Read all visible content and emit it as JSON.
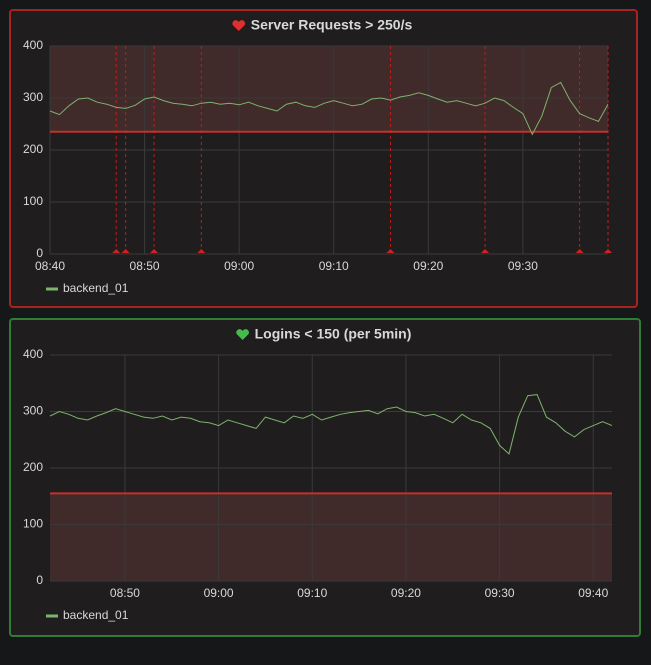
{
  "chart_data": [
    {
      "type": "line",
      "title": "Server Requests > 250/s",
      "state": "alerting",
      "x": [
        "08:40",
        "08:41",
        "08:42",
        "08:43",
        "08:44",
        "08:45",
        "08:46",
        "08:47",
        "08:48",
        "08:49",
        "08:50",
        "08:51",
        "08:52",
        "08:53",
        "08:54",
        "08:55",
        "08:56",
        "08:57",
        "08:58",
        "08:59",
        "09:00",
        "09:01",
        "09:02",
        "09:03",
        "09:04",
        "09:05",
        "09:06",
        "09:07",
        "09:08",
        "09:09",
        "09:10",
        "09:11",
        "09:12",
        "09:13",
        "09:14",
        "09:15",
        "09:16",
        "09:17",
        "09:18",
        "09:19",
        "09:20",
        "09:21",
        "09:22",
        "09:23",
        "09:24",
        "09:25",
        "09:26",
        "09:27",
        "09:28",
        "09:29",
        "09:30",
        "09:31",
        "09:32",
        "09:33",
        "09:34",
        "09:35",
        "09:36",
        "09:37",
        "09:38",
        "09:39"
      ],
      "series": [
        {
          "name": "backend_01",
          "color": "#7eb26d",
          "values": [
            275,
            268,
            285,
            298,
            300,
            292,
            288,
            282,
            280,
            286,
            298,
            302,
            295,
            290,
            288,
            285,
            290,
            292,
            288,
            290,
            287,
            292,
            285,
            280,
            275,
            288,
            292,
            285,
            282,
            290,
            295,
            290,
            285,
            288,
            298,
            300,
            296,
            302,
            305,
            310,
            305,
            298,
            292,
            295,
            290,
            285,
            290,
            300,
            295,
            282,
            270,
            230,
            265,
            320,
            330,
            295,
            270,
            262,
            255,
            288
          ]
        }
      ],
      "xlim": [
        "08:40",
        "09:39"
      ],
      "xticks": [
        "08:40",
        "08:50",
        "09:00",
        "09:10",
        "09:20",
        "09:30"
      ],
      "ylim": [
        0,
        400
      ],
      "yticks": [
        0,
        100,
        200,
        300,
        400
      ],
      "grid": true,
      "threshold": 235,
      "threshold_fill": "above",
      "annotations": [
        "08:47",
        "08:48",
        "08:51",
        "08:56",
        "09:16",
        "09:26",
        "09:36",
        "09:39"
      ]
    },
    {
      "type": "line",
      "title": "Logins < 150 (per 5min)",
      "state": "ok",
      "x": [
        "08:42",
        "08:43",
        "08:44",
        "08:45",
        "08:46",
        "08:47",
        "08:48",
        "08:49",
        "08:50",
        "08:51",
        "08:52",
        "08:53",
        "08:54",
        "08:55",
        "08:56",
        "08:57",
        "08:58",
        "08:59",
        "09:00",
        "09:01",
        "09:02",
        "09:03",
        "09:04",
        "09:05",
        "09:06",
        "09:07",
        "09:08",
        "09:09",
        "09:10",
        "09:11",
        "09:12",
        "09:13",
        "09:14",
        "09:15",
        "09:16",
        "09:17",
        "09:18",
        "09:19",
        "09:20",
        "09:21",
        "09:22",
        "09:23",
        "09:24",
        "09:25",
        "09:26",
        "09:27",
        "09:28",
        "09:29",
        "09:30",
        "09:31",
        "09:32",
        "09:33",
        "09:34",
        "09:35",
        "09:36",
        "09:37",
        "09:38",
        "09:39",
        "09:40",
        "09:41",
        "09:42"
      ],
      "series": [
        {
          "name": "backend_01",
          "color": "#7eb26d",
          "values": [
            292,
            300,
            295,
            288,
            285,
            292,
            298,
            305,
            300,
            295,
            290,
            288,
            292,
            285,
            290,
            288,
            282,
            280,
            275,
            285,
            280,
            275,
            270,
            290,
            285,
            280,
            292,
            288,
            295,
            285,
            290,
            295,
            298,
            300,
            302,
            296,
            305,
            308,
            300,
            298,
            292,
            295,
            288,
            280,
            295,
            285,
            280,
            270,
            240,
            225,
            290,
            328,
            330,
            290,
            280,
            265,
            255,
            268,
            275,
            282,
            275
          ]
        }
      ],
      "xlim": [
        "08:42",
        "09:42"
      ],
      "xticks": [
        "08:50",
        "09:00",
        "09:10",
        "09:20",
        "09:30",
        "09:40"
      ],
      "ylim": [
        0,
        400
      ],
      "yticks": [
        0,
        100,
        200,
        300,
        400
      ],
      "grid": true,
      "threshold": 155,
      "threshold_fill": "below",
      "annotations": []
    }
  ]
}
